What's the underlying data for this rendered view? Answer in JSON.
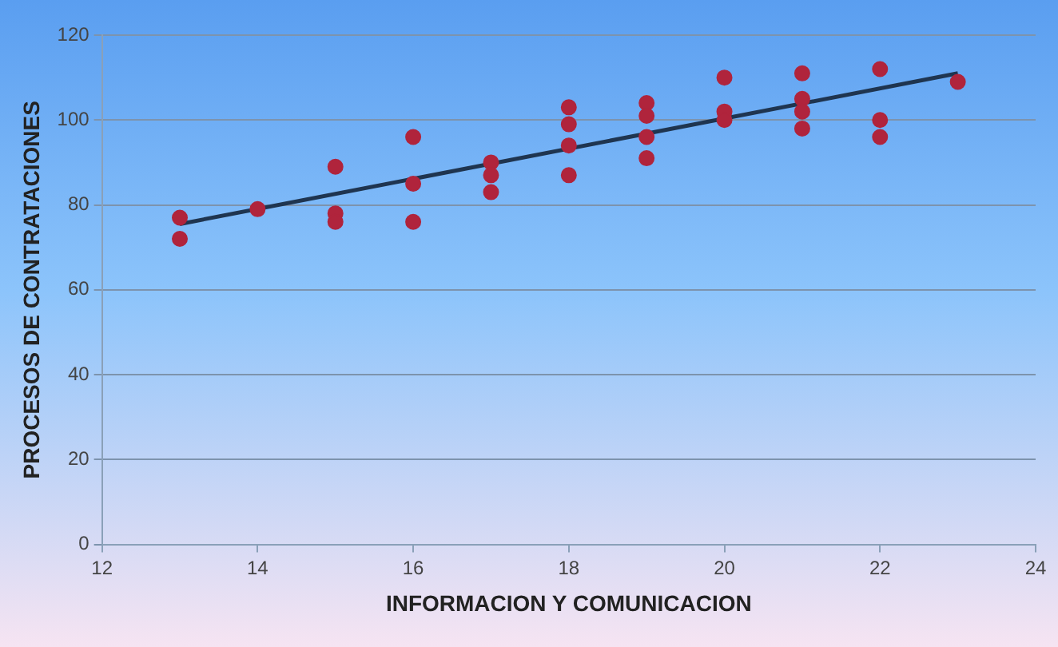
{
  "chart_data": {
    "type": "scatter",
    "xlabel": "INFORMACION Y COMUNICACION",
    "ylabel": "PROCESOS DE CONTRATACIONES",
    "xlim": [
      12,
      24
    ],
    "xticks": [
      12,
      14,
      16,
      18,
      20,
      22,
      24
    ],
    "ylim": [
      0,
      120
    ],
    "yticks": [
      0,
      20,
      40,
      60,
      80,
      100,
      120
    ],
    "grid": "y",
    "marker": "circle",
    "series": [
      {
        "color": "#b0243c",
        "x": [
          13,
          13,
          14,
          15,
          15,
          15,
          16,
          16,
          16,
          17,
          17,
          17,
          18,
          18,
          18,
          18,
          19,
          19,
          19,
          19,
          20,
          20,
          20,
          21,
          21,
          21,
          21,
          22,
          22,
          22,
          23
        ],
        "values": [
          77,
          72,
          79,
          89,
          78,
          76,
          96,
          85,
          76,
          90,
          87,
          83,
          103,
          99,
          94,
          87,
          104,
          101,
          96,
          91,
          110,
          102,
          100,
          111,
          105,
          102,
          98,
          112,
          100,
          96,
          109
        ]
      },
      {
        "type": "line",
        "color": "#1f3550",
        "x": [
          13,
          23
        ],
        "values": [
          75.5,
          111
        ],
        "marker": "none"
      }
    ]
  }
}
